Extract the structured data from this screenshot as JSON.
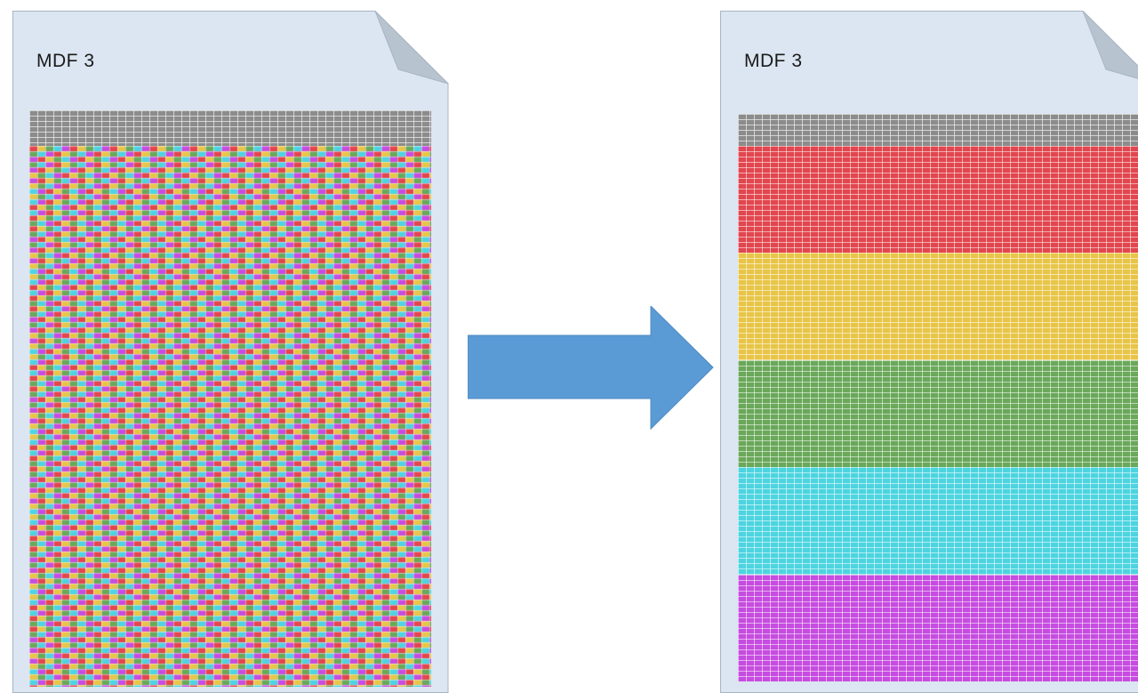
{
  "diagram": {
    "left_document": {
      "label": "MDF 3",
      "layout": "interleaved",
      "header_color": "#8c8c8c",
      "cell_colors": [
        "#e2464e",
        "#e8c548",
        "#6aa85a",
        "#4dd4e0",
        "#c64ce0"
      ]
    },
    "right_document": {
      "label": "MDF 3",
      "layout": "sorted-bands",
      "header_color": "#8c8c8c",
      "bands": [
        {
          "color": "#e2464e"
        },
        {
          "color": "#e8c548"
        },
        {
          "color": "#6aa85a"
        },
        {
          "color": "#4dd4e0"
        },
        {
          "color": "#c64ce0"
        }
      ]
    },
    "arrow": {
      "color": "#5b9bd5",
      "direction": "right"
    }
  }
}
